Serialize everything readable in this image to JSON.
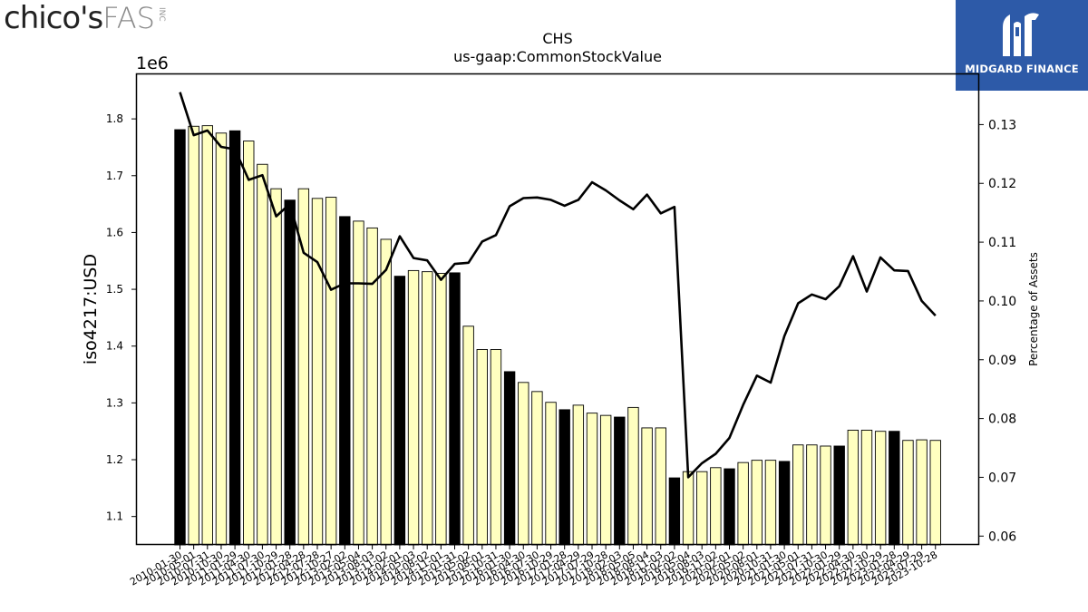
{
  "brand_left": {
    "primary": "chico's",
    "secondary": "FAS",
    "suffix": "INC"
  },
  "brand_right": {
    "name": "MIDGARD FINANCE"
  },
  "chart_data": {
    "type": "bar",
    "title": "CHS",
    "subtitle": "us-gaap:CommonStockValue",
    "ylabel": "iso4217:USD",
    "y2label": "Percentage of Assets",
    "y_scale_label": "1e6",
    "ylim": [
      1.05,
      1.88
    ],
    "y2lim": [
      0.0585,
      0.1387
    ],
    "y_ticks": [
      "1.1",
      "1.2",
      "1.3",
      "1.4",
      "1.5",
      "1.6",
      "1.7",
      "1.8"
    ],
    "y2_ticks": [
      "0.06",
      "0.07",
      "0.08",
      "0.09",
      "0.10",
      "0.11",
      "0.12",
      "0.13"
    ],
    "grid": false,
    "categories": [
      "2010-01-30",
      "2010-05-01",
      "2010-07-31",
      "2010-10-30",
      "2011-01-29",
      "2011-04-30",
      "2011-07-30",
      "2011-10-29",
      "2012-01-28",
      "2012-04-28",
      "2012-07-28",
      "2012-10-27",
      "2013-02-02",
      "2013-05-04",
      "2013-08-03",
      "2013-11-02",
      "2014-02-01",
      "2014-05-03",
      "2014-08-02",
      "2014-11-01",
      "2015-01-31",
      "2015-05-02",
      "2015-08-01",
      "2015-10-31",
      "2016-01-30",
      "2016-04-30",
      "2016-07-30",
      "2016-10-29",
      "2017-01-28",
      "2017-04-29",
      "2017-07-29",
      "2017-10-28",
      "2018-02-03",
      "2018-05-05",
      "2018-08-04",
      "2018-11-03",
      "2019-02-02",
      "2019-05-04",
      "2019-08-03",
      "2019-11-02",
      "2020-02-01",
      "2020-05-02",
      "2020-08-01",
      "2020-10-31",
      "2021-01-30",
      "2021-05-01",
      "2021-07-31",
      "2021-10-30",
      "2022-01-29",
      "2022-04-30",
      "2022-07-30",
      "2022-10-29",
      "2023-01-28",
      "2023-04-29",
      "2023-07-29",
      "2023-10-28"
    ],
    "series": [
      {
        "kind": "bar",
        "values": [
          1.781,
          1.787,
          1.788,
          1.775,
          1.779,
          1.761,
          1.72,
          1.677,
          1.657,
          1.677,
          1.66,
          1.662,
          1.628,
          1.62,
          1.608,
          1.588,
          1.523,
          1.533,
          1.531,
          1.528,
          1.529,
          1.435,
          1.394,
          1.394,
          1.355,
          1.336,
          1.32,
          1.301,
          1.288,
          1.296,
          1.282,
          1.278,
          1.275,
          1.292,
          1.256,
          1.256,
          1.168,
          1.179,
          1.179,
          1.186,
          1.184,
          1.195,
          1.199,
          1.199,
          1.197,
          1.226,
          1.226,
          1.224,
          1.224,
          1.252,
          1.252,
          1.25,
          1.25,
          1.234,
          1.235,
          1.234
        ],
        "highlight": [
          true,
          false,
          false,
          false,
          true,
          false,
          false,
          false,
          true,
          false,
          false,
          false,
          true,
          false,
          false,
          false,
          true,
          false,
          false,
          false,
          true,
          false,
          false,
          false,
          true,
          false,
          false,
          false,
          true,
          false,
          false,
          false,
          true,
          false,
          false,
          false,
          true,
          false,
          false,
          false,
          true,
          false,
          false,
          false,
          true,
          false,
          false,
          false,
          true,
          false,
          false,
          false,
          true,
          false,
          false,
          false
        ]
      },
      {
        "kind": "line",
        "axis": "right",
        "values": [
          0.1355,
          0.1282,
          0.129,
          0.1262,
          0.1258,
          0.1206,
          0.1214,
          0.1144,
          0.1165,
          0.1082,
          0.1066,
          0.1019,
          0.103,
          0.103,
          0.1029,
          0.1053,
          0.111,
          0.1073,
          0.1069,
          0.1036,
          0.1063,
          0.1065,
          0.1101,
          0.1112,
          0.1161,
          0.1175,
          0.1176,
          0.1172,
          0.1162,
          0.1172,
          0.1202,
          0.1188,
          0.1171,
          0.1156,
          0.1181,
          0.1149,
          0.116,
          0.07,
          0.0724,
          0.074,
          0.0767,
          0.0823,
          0.0873,
          0.0861,
          0.094,
          0.0996,
          0.1011,
          0.1003,
          0.1025,
          0.1076,
          0.1016,
          0.1074,
          0.1052,
          0.1051,
          0.1,
          0.0975
        ]
      }
    ],
    "colors": {
      "highlight_bar": "#000000",
      "bar": "#ffffc0",
      "line": "#000000"
    }
  }
}
